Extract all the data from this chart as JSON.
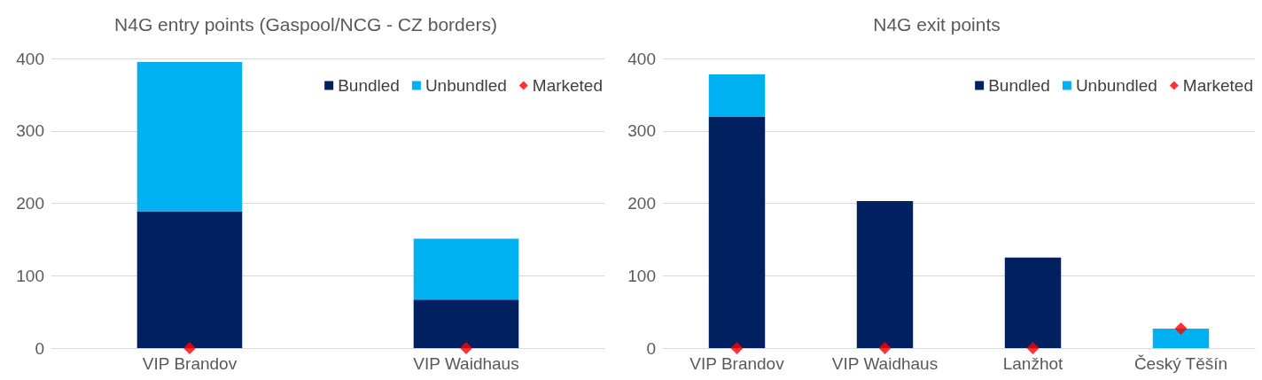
{
  "chart_data": [
    {
      "type": "bar",
      "title": "N4G entry points (Gaspool/NCG - CZ borders)",
      "categories": [
        "VIP Brandov",
        "VIP Waidhaus"
      ],
      "stacked": true,
      "ylim": [
        0,
        400
      ],
      "yticks": [
        0,
        100,
        200,
        300,
        400
      ],
      "grid": "y",
      "legend": "top right",
      "marker": "diamond",
      "series": [
        {
          "name": "Bundled",
          "color": "#002060",
          "values": [
            189,
            67
          ]
        },
        {
          "name": "Unbundled",
          "color": "#00b0f0",
          "values": [
            206,
            84
          ]
        },
        {
          "name": "Marketed",
          "type": "scatter",
          "color": "#ff0000",
          "x": [
            "VIP Brandov",
            "VIP Waidhaus"
          ],
          "values": [
            0,
            0
          ]
        }
      ]
    },
    {
      "type": "bar",
      "title": "N4G exit points",
      "categories": [
        "VIP Brandov",
        "VIP Waidhaus",
        "Lanžhot",
        "Český Těšín"
      ],
      "stacked": true,
      "ylim": [
        0,
        400
      ],
      "yticks": [
        0,
        100,
        200,
        300,
        400
      ],
      "grid": "y",
      "legend": "top right",
      "marker": "diamond",
      "series": [
        {
          "name": "Bundled",
          "color": "#002060",
          "values": [
            320,
            203,
            125,
            0
          ]
        },
        {
          "name": "Unbundled",
          "color": "#00b0f0",
          "values": [
            58,
            0,
            0,
            27
          ]
        },
        {
          "name": "Marketed",
          "type": "scatter",
          "color": "#ff0000",
          "x": [
            "VIP Brandov",
            "VIP Waidhaus",
            "Lanžhot",
            "Český Těšín"
          ],
          "values": [
            0,
            0,
            0,
            27
          ]
        }
      ]
    }
  ]
}
